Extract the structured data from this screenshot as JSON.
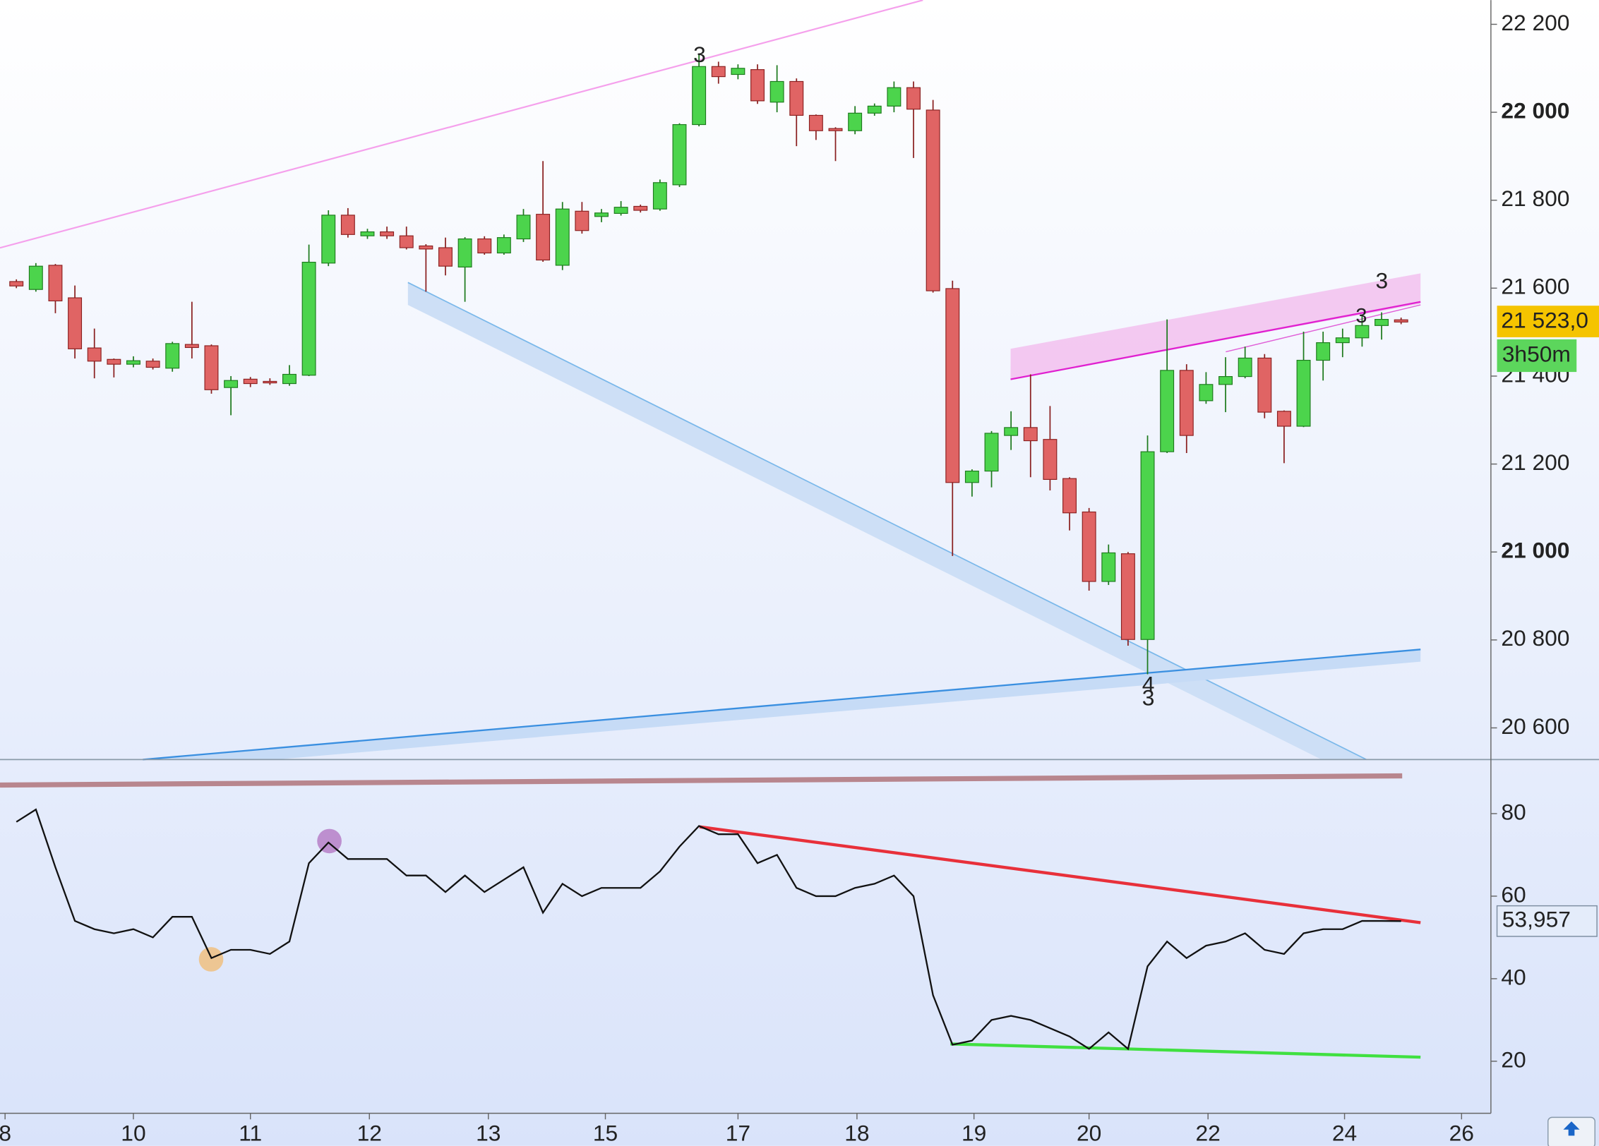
{
  "chart_data": [
    {
      "type": "candlestick",
      "x": [
        0,
        1,
        2,
        3,
        4,
        5,
        6,
        7,
        8,
        9,
        10,
        11,
        12,
        13,
        14,
        15,
        16,
        17,
        18,
        19,
        20,
        21,
        22,
        23,
        24,
        25,
        26,
        27,
        28,
        29,
        30,
        31,
        32,
        33,
        34,
        35,
        36,
        37,
        38,
        39,
        40,
        41,
        42,
        43,
        44,
        45,
        46,
        47,
        48,
        49,
        50,
        51,
        52,
        53,
        54,
        55,
        56,
        57,
        58,
        59,
        60,
        61,
        62,
        63,
        64,
        65,
        66,
        67,
        68,
        69,
        70,
        71
      ],
      "open": [
        21615,
        21597,
        21652,
        21578,
        21464,
        21438,
        21427,
        21434,
        21418,
        21472,
        21469,
        21374,
        21393,
        21388,
        21383,
        21402,
        21657,
        21766,
        21719,
        21728,
        21719,
        21696,
        21692,
        21648,
        21712,
        21680,
        21712,
        21768,
        21652,
        21775,
        21763,
        21770,
        21786,
        21780,
        21835,
        21972,
        22104,
        22086,
        22097,
        22023,
        22070,
        21993,
        21963,
        21958,
        21998,
        22014,
        22056,
        22005,
        21599,
        21158,
        21184,
        21265,
        21283,
        21256,
        21167,
        21091,
        20933,
        20996,
        20801,
        21228,
        21413,
        21344,
        21381,
        21399,
        21441,
        21320,
        21286,
        21436,
        21476,
        21487,
        21515,
        21528
      ],
      "high": [
        21620,
        21657,
        21655,
        21606,
        21508,
        21440,
        21445,
        21440,
        21478,
        21569,
        21472,
        21400,
        21398,
        21395,
        21425,
        21699,
        21777,
        21782,
        21735,
        21740,
        21740,
        21700,
        21715,
        21716,
        21718,
        21722,
        21780,
        21889,
        21796,
        21796,
        21780,
        21798,
        21790,
        21847,
        21975,
        22132,
        22115,
        22109,
        22109,
        22107,
        22077,
        21995,
        21966,
        22014,
        22020,
        22070,
        22070,
        22028,
        21617,
        21188,
        21275,
        21320,
        21404,
        21332,
        21170,
        21100,
        21017,
        21000,
        21265,
        21529,
        21427,
        21409,
        21443,
        21467,
        21450,
        21322,
        21501,
        21501,
        21508,
        21536,
        21545,
        21533
      ],
      "low": [
        21600,
        21592,
        21543,
        21440,
        21395,
        21397,
        21420,
        21415,
        21410,
        21440,
        21360,
        21311,
        21375,
        21380,
        21378,
        21400,
        21650,
        21715,
        21712,
        21712,
        21688,
        21592,
        21629,
        21569,
        21676,
        21676,
        21705,
        21660,
        21641,
        21724,
        21750,
        21765,
        21772,
        21776,
        21830,
        21968,
        22065,
        22075,
        22019,
        22000,
        21923,
        21937,
        21889,
        21950,
        21992,
        22000,
        21896,
        21590,
        20991,
        21126,
        21147,
        21232,
        21170,
        21140,
        21049,
        20912,
        20925,
        20787,
        20722,
        21225,
        21225,
        21337,
        21318,
        21395,
        21304,
        21202,
        21284,
        21390,
        21443,
        21467,
        21483,
        21518
      ],
      "close": [
        21605,
        21650,
        21571,
        21462,
        21434,
        21427,
        21435,
        21420,
        21474,
        21465,
        21369,
        21390,
        21383,
        21385,
        21404,
        21659,
        21766,
        21722,
        21728,
        21719,
        21692,
        21689,
        21650,
        21712,
        21680,
        21715,
        21766,
        21664,
        21780,
        21731,
        21771,
        21784,
        21777,
        21840,
        21972,
        22104,
        22081,
        22100,
        22026,
        22070,
        21993,
        21958,
        21958,
        21998,
        22014,
        22056,
        22007,
        21594,
        21158,
        21184,
        21270,
        21283,
        21253,
        21165,
        21089,
        20933,
        20998,
        20801,
        21228,
        21413,
        21265,
        21381,
        21399,
        21441,
        21318,
        21286,
        21436,
        21476,
        21487,
        21515,
        21529,
        21523
      ],
      "up_color": "#4cd44c",
      "down_color": "#e06464",
      "xlim": [
        -0.84,
        75.5
      ],
      "ylim": [
        20528,
        22255
      ],
      "yticks": [
        {
          "value": 20600,
          "label": "20 600"
        },
        {
          "value": 20800,
          "label": "20 800"
        },
        {
          "value": 21000,
          "label": "21 000"
        },
        {
          "value": 21200,
          "label": "21 200"
        },
        {
          "value": 21400,
          "label": "21 400"
        },
        {
          "value": 21600,
          "label": "21 600"
        },
        {
          "value": 21800,
          "label": "21 800"
        },
        {
          "value": 22000,
          "label": "22 000"
        },
        {
          "value": 22200,
          "label": "22 200"
        }
      ],
      "last_price": 21523,
      "last_price_label": "21 523,0",
      "countdown": "3h50m",
      "annotations": [
        "3",
        "3",
        "3",
        "4",
        "3"
      ]
    },
    {
      "type": "line",
      "x": [
        0,
        1,
        2,
        3,
        4,
        5,
        6,
        7,
        8,
        9,
        10,
        11,
        12,
        13,
        14,
        15,
        16,
        17,
        18,
        19,
        20,
        21,
        22,
        23,
        24,
        25,
        26,
        27,
        28,
        29,
        30,
        31,
        32,
        33,
        34,
        35,
        36,
        37,
        38,
        39,
        40,
        41,
        42,
        43,
        44,
        45,
        46,
        47,
        48,
        49,
        50,
        51,
        52,
        53,
        54,
        55,
        56,
        57,
        58,
        59,
        60,
        61,
        62,
        63,
        64,
        65,
        66,
        67,
        68,
        69,
        70,
        71
      ],
      "values": [
        78,
        81,
        67,
        54,
        52,
        51,
        52,
        50,
        55,
        55,
        45,
        47,
        47,
        46,
        49,
        68,
        73,
        69,
        69,
        69,
        65,
        65,
        61,
        65,
        61,
        64,
        67,
        56,
        63,
        60,
        62,
        62,
        62,
        66,
        72,
        77,
        75,
        75,
        68,
        70,
        62,
        60,
        60,
        62,
        63,
        65,
        60,
        36,
        24,
        25,
        30,
        31,
        30,
        28,
        26,
        23,
        27,
        23,
        43,
        49,
        45,
        48,
        49,
        51,
        47,
        46,
        51,
        52,
        52,
        54,
        54,
        53.957
      ],
      "value_labels": [
        null,
        null,
        null,
        null,
        null,
        null,
        null,
        null,
        null,
        null,
        null,
        null,
        null,
        null,
        null,
        null,
        null,
        null,
        null,
        null,
        null,
        null,
        null,
        null,
        null,
        null,
        null,
        null,
        null,
        null,
        null,
        null,
        null,
        null,
        null,
        null,
        null,
        null,
        null,
        null,
        null,
        null,
        null,
        null,
        null,
        null,
        null,
        null,
        null,
        null,
        null,
        null,
        null,
        null,
        null,
        null,
        null,
        null,
        null,
        null,
        null,
        null,
        null,
        null,
        null,
        null,
        null,
        null,
        null,
        null,
        null,
        "53,957"
      ],
      "color": "#111111",
      "xlim": [
        -0.84,
        75.5
      ],
      "xticks": [
        {
          "value": -0.58,
          "label": "8"
        },
        {
          "value": 6.0,
          "label": "10"
        },
        {
          "value": 12.0,
          "label": "11"
        },
        {
          "value": 18.1,
          "label": "12"
        },
        {
          "value": 24.2,
          "label": "13"
        },
        {
          "value": 30.2,
          "label": "15"
        },
        {
          "value": 37.0,
          "label": "17"
        },
        {
          "value": 43.1,
          "label": "18"
        },
        {
          "value": 49.1,
          "label": "19"
        },
        {
          "value": 55.0,
          "label": "20"
        },
        {
          "value": 61.1,
          "label": "22"
        },
        {
          "value": 68.1,
          "label": "24"
        },
        {
          "value": 74.1,
          "label": "26"
        }
      ],
      "ylim": [
        7.4,
        93.1
      ],
      "yticks": [
        20,
        40,
        60,
        80
      ]
    }
  ]
}
